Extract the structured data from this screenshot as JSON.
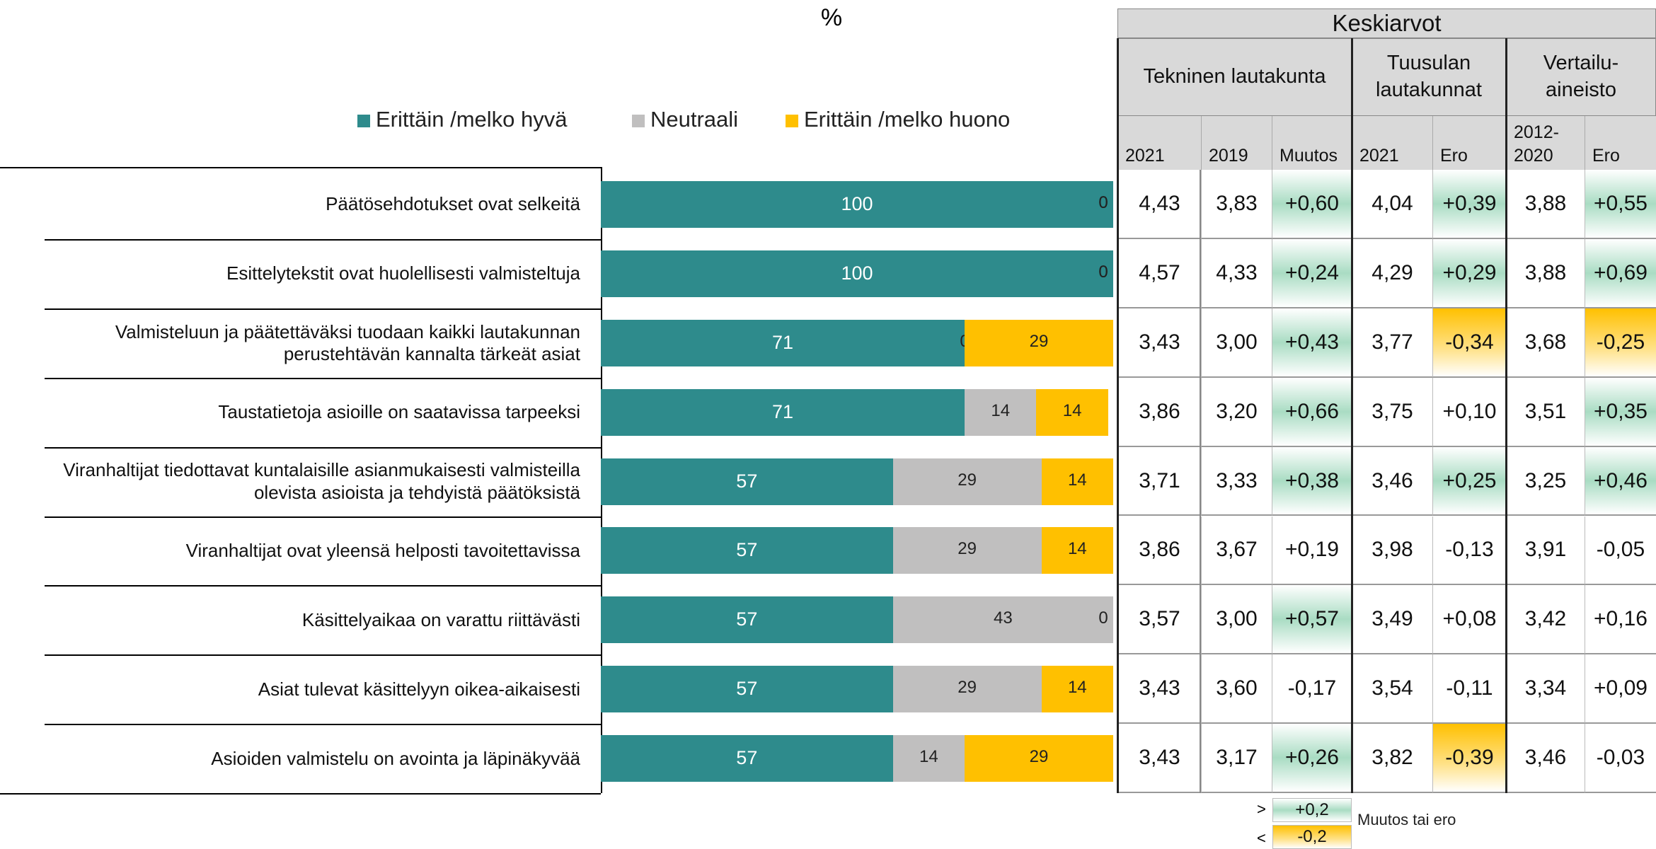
{
  "chart_data": {
    "type": "bar",
    "orientation": "horizontal",
    "stacked": true,
    "x_label": "%",
    "categories": [
      "Päätösehdotukset ovat selkeitä",
      "Esittelytekstit ovat huolellisesti valmisteltuja",
      "Valmisteluun ja päätettäväksi tuodaan kaikki lautakunnan perustehtävän kannalta tärkeät asiat",
      "Taustatietoja asioille on saatavissa tarpeeksi",
      "Viranhaltijat tiedottavat kuntalaisille asianmukaisesti valmisteilla olevista asioista ja tehdyistä päätöksistä",
      "Viranhaltijat ovat yleensä helposti tavoitettavissa",
      "Käsittelyaikaa on varattu riittävästi",
      "Asiat tulevat käsittelyyn oikea-aikaisesti",
      "Asioiden valmistelu on avointa ja läpinäkyvää"
    ],
    "series": [
      {
        "name": "Erittäin /melko hyvä",
        "color": "#2e8b8c",
        "values": [
          100,
          100,
          71,
          71,
          57,
          57,
          57,
          57,
          57
        ]
      },
      {
        "name": "Neutraali",
        "color": "#c0bfbf",
        "values": [
          0,
          0,
          0,
          14,
          29,
          29,
          43,
          29,
          14
        ]
      },
      {
        "name": "Erittäin /melko huono",
        "color": "#ffc000",
        "values": [
          0,
          0,
          29,
          14,
          14,
          14,
          0,
          14,
          29
        ]
      }
    ],
    "xlim": [
      0,
      100
    ],
    "legend": "top"
  },
  "table": {
    "title": "Keskiarvot",
    "groups": [
      "Tekninen lautakunta",
      "Tuusulan lautakunnat",
      "Vertailu-aineisto"
    ],
    "columns": [
      "2021",
      "2019",
      "Muutos",
      "2021",
      "Ero",
      "2012-2020",
      "Ero"
    ],
    "rows": [
      [
        "4,43",
        "3,83",
        "+0,60",
        "4,04",
        "+0,39",
        "3,88",
        "+0,55"
      ],
      [
        "4,57",
        "4,33",
        "+0,24",
        "4,29",
        "+0,29",
        "3,88",
        "+0,69"
      ],
      [
        "3,43",
        "3,00",
        "+0,43",
        "3,77",
        "-0,34",
        "3,68",
        "-0,25"
      ],
      [
        "3,86",
        "3,20",
        "+0,66",
        "3,75",
        "+0,10",
        "3,51",
        "+0,35"
      ],
      [
        "3,71",
        "3,33",
        "+0,38",
        "3,46",
        "+0,25",
        "3,25",
        "+0,46"
      ],
      [
        "3,86",
        "3,67",
        "+0,19",
        "3,98",
        "-0,13",
        "3,91",
        "-0,05"
      ],
      [
        "3,57",
        "3,00",
        "+0,57",
        "3,49",
        "+0,08",
        "3,42",
        "+0,16"
      ],
      [
        "3,43",
        "3,60",
        "-0,17",
        "3,54",
        "-0,11",
        "3,34",
        "+0,09"
      ],
      [
        "3,43",
        "3,17",
        "+0,26",
        "3,82",
        "-0,39",
        "3,46",
        "-0,03"
      ]
    ]
  },
  "footnote": {
    "above": {
      "symbol": ">",
      "value": "+0,2"
    },
    "below": {
      "symbol": "<",
      "value": "-0,2"
    },
    "label": "Muutos tai ero"
  }
}
